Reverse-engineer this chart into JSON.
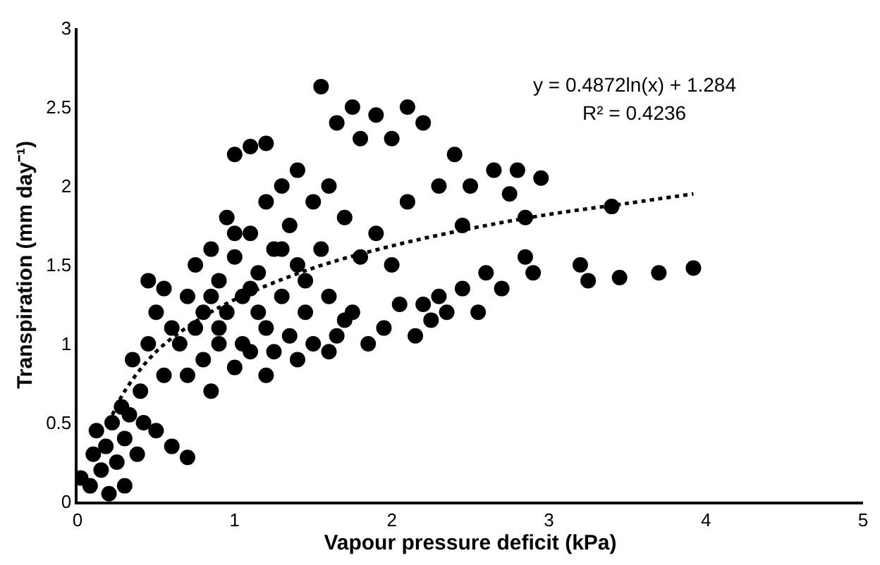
{
  "chart_data": {
    "type": "scatter",
    "xlabel": "Vapour pressure deficit (kPa)",
    "ylabel": "Transpiration (mm day⁻¹)",
    "xlim": [
      0,
      5
    ],
    "xticks": [
      0,
      1,
      2,
      3,
      4,
      5
    ],
    "ylim": [
      0,
      3
    ],
    "yticks": [
      0,
      0.5,
      1,
      1.5,
      2,
      2.5,
      3
    ],
    "annotations": [
      "y = 0.4872ln(x) + 1.284",
      "R² = 0.4236"
    ],
    "series": [
      {
        "color": "#000000",
        "marker": "circle",
        "x": [
          0.02,
          0.08,
          0.1,
          0.12,
          0.15,
          0.18,
          0.2,
          0.22,
          0.25,
          0.28,
          0.3,
          0.3,
          0.33,
          0.35,
          0.38,
          0.4,
          0.42,
          0.45,
          0.45,
          0.5,
          0.5,
          0.55,
          0.55,
          0.6,
          0.6,
          0.65,
          0.7,
          0.7,
          0.7,
          0.75,
          0.8,
          0.8,
          0.85,
          0.85,
          0.9,
          0.9,
          0.95,
          0.95,
          1.0,
          1.0,
          1.0,
          1.05,
          1.05,
          1.1,
          1.1,
          1.1,
          1.15,
          1.2,
          1.2,
          1.2,
          1.2,
          1.25,
          1.25,
          1.3,
          1.3,
          1.35,
          1.35,
          1.4,
          1.4,
          1.4,
          1.45,
          1.5,
          1.5,
          1.55,
          1.55,
          1.6,
          1.6,
          1.65,
          1.65,
          1.7,
          1.75,
          1.75,
          1.8,
          1.8,
          1.85,
          1.9,
          1.9,
          1.95,
          2.0,
          2.0,
          2.05,
          2.1,
          2.1,
          2.15,
          2.2,
          2.2,
          2.25,
          2.3,
          2.3,
          2.35,
          2.4,
          2.45,
          2.45,
          2.5,
          2.55,
          2.6,
          2.65,
          2.7,
          2.75,
          2.8,
          2.85,
          2.9,
          2.95,
          2.85,
          3.2,
          3.25,
          3.4,
          3.45,
          3.7,
          3.92,
          0.9,
          1.0,
          1.1,
          1.3,
          0.75,
          0.85,
          1.15,
          1.45,
          1.6,
          1.7
        ],
        "values": [
          0.15,
          0.1,
          0.3,
          0.45,
          0.2,
          0.35,
          0.05,
          0.5,
          0.25,
          0.6,
          0.1,
          0.4,
          0.55,
          0.9,
          0.3,
          0.7,
          0.5,
          1.4,
          1.0,
          0.45,
          1.2,
          0.8,
          1.35,
          0.35,
          1.1,
          1.0,
          0.28,
          0.8,
          1.3,
          1.5,
          1.2,
          0.9,
          1.6,
          0.7,
          1.4,
          1.0,
          1.8,
          1.2,
          2.2,
          1.55,
          0.85,
          1.3,
          1.0,
          2.25,
          1.7,
          0.95,
          1.45,
          2.27,
          1.9,
          1.1,
          0.8,
          1.6,
          0.95,
          2.0,
          1.3,
          1.75,
          1.05,
          2.1,
          1.5,
          0.9,
          1.2,
          1.9,
          1.0,
          2.63,
          1.6,
          1.3,
          2.0,
          2.4,
          1.05,
          1.8,
          2.5,
          1.2,
          2.3,
          1.55,
          1.0,
          2.45,
          1.7,
          1.1,
          2.3,
          1.5,
          1.25,
          2.5,
          1.9,
          1.05,
          2.4,
          1.25,
          1.15,
          2.0,
          1.3,
          1.2,
          2.2,
          1.35,
          1.75,
          2.0,
          1.2,
          1.45,
          2.1,
          1.35,
          1.95,
          2.1,
          1.55,
          1.45,
          2.05,
          1.8,
          1.5,
          1.4,
          1.87,
          1.42,
          1.45,
          1.48,
          1.1,
          1.7,
          1.35,
          1.6,
          1.1,
          1.3,
          1.2,
          1.4,
          0.95,
          1.15
        ]
      },
      {
        "type": "line",
        "color": "#000000",
        "marker": "none",
        "line_style": "dotted",
        "x": [
          0.2,
          0.3,
          0.5,
          0.75,
          1,
          1.5,
          2,
          2.5,
          3,
          3.5,
          3.92
        ],
        "values": [
          0.5,
          0.7,
          0.95,
          1.14,
          1.28,
          1.48,
          1.62,
          1.73,
          1.82,
          1.89,
          1.95
        ]
      }
    ]
  }
}
